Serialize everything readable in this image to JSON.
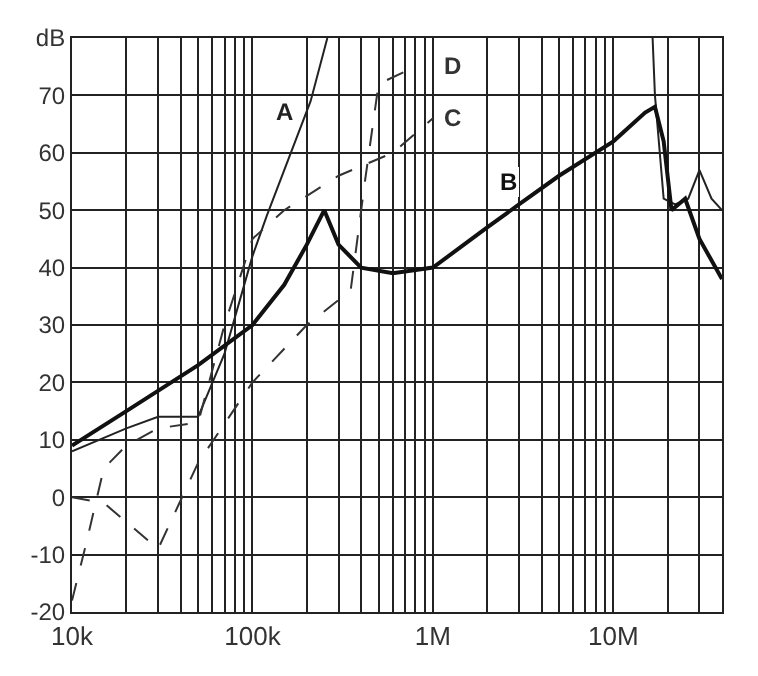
{
  "chart_data": {
    "type": "line",
    "log": "x",
    "grid": true,
    "legend": false,
    "marker": "none",
    "xlim": [
      10000,
      40000000
    ],
    "xticks": [
      {
        "value": 10000,
        "label": "10k"
      },
      {
        "value": 20000,
        "label": null
      },
      {
        "value": 30000,
        "label": null
      },
      {
        "value": 40000,
        "label": null
      },
      {
        "value": 50000,
        "label": null
      },
      {
        "value": 60000,
        "label": null
      },
      {
        "value": 70000,
        "label": null
      },
      {
        "value": 80000,
        "label": null
      },
      {
        "value": 90000,
        "label": null
      },
      {
        "value": 100000,
        "label": "100k"
      },
      {
        "value": 200000,
        "label": null
      },
      {
        "value": 300000,
        "label": null
      },
      {
        "value": 400000,
        "label": null
      },
      {
        "value": 500000,
        "label": null
      },
      {
        "value": 600000,
        "label": null
      },
      {
        "value": 700000,
        "label": null
      },
      {
        "value": 800000,
        "label": null
      },
      {
        "value": 900000,
        "label": null
      },
      {
        "value": 1000000,
        "label": "1M"
      },
      {
        "value": 2000000,
        "label": null
      },
      {
        "value": 3000000,
        "label": null
      },
      {
        "value": 4000000,
        "label": null
      },
      {
        "value": 5000000,
        "label": null
      },
      {
        "value": 6000000,
        "label": null
      },
      {
        "value": 7000000,
        "label": null
      },
      {
        "value": 8000000,
        "label": null
      },
      {
        "value": 9000000,
        "label": null
      },
      {
        "value": 10000000,
        "label": "10M"
      },
      {
        "value": 20000000,
        "label": null
      },
      {
        "value": 30000000,
        "label": null
      }
    ],
    "ylim": [
      -20,
      80
    ],
    "yticks": [
      -20,
      -10,
      0,
      10,
      20,
      30,
      40,
      50,
      60,
      70,
      {
        "value": 80,
        "label": "dB"
      }
    ],
    "series": [
      {
        "name": "A",
        "color": "#222222",
        "line_style": "solid",
        "x": [
          10000,
          20000,
          30000,
          50000,
          70000,
          100000,
          120000,
          210000,
          260000,
          null,
          16500000,
          17000000,
          19000000,
          22000000,
          26000000,
          30000000,
          35000000,
          40000000
        ],
        "values": [
          8,
          12,
          14,
          14,
          25,
          42,
          49,
          69,
          80,
          null,
          80,
          70,
          52,
          51,
          52,
          57,
          52,
          50
        ]
      },
      {
        "name": "B",
        "color": "#111111",
        "line_style": "solid",
        "x": [
          10000,
          20000,
          50000,
          100000,
          150000,
          200000,
          250000,
          300000,
          400000,
          600000,
          1000000,
          2000000,
          3000000,
          5000000,
          10000000,
          15000000,
          17000000,
          19000000,
          21000000,
          25000000,
          30000000,
          40000000
        ],
        "values": [
          9,
          15,
          23,
          30,
          37,
          44,
          50,
          44,
          40,
          39,
          40,
          47,
          51,
          56,
          62,
          67,
          68,
          62,
          50,
          52,
          45,
          38
        ]
      },
      {
        "name": "C",
        "color": "#333333",
        "line_style": "dashed",
        "x": [
          10000,
          12000,
          15000,
          20000,
          30000,
          50000,
          70000,
          100000,
          150000,
          300000,
          600000,
          1000000
        ],
        "values": [
          -18,
          -8,
          5,
          9,
          12,
          13,
          30,
          45,
          50,
          56,
          60,
          66
        ]
      },
      {
        "name": "D",
        "color": "#333333",
        "line_style": "dashed",
        "x": [
          10000,
          15000,
          30000,
          50000,
          100000,
          200000,
          350000,
          420000,
          500000,
          800000
        ],
        "values": [
          0,
          -1,
          -9,
          6,
          20,
          30,
          36,
          55,
          72,
          75
        ]
      }
    ]
  }
}
